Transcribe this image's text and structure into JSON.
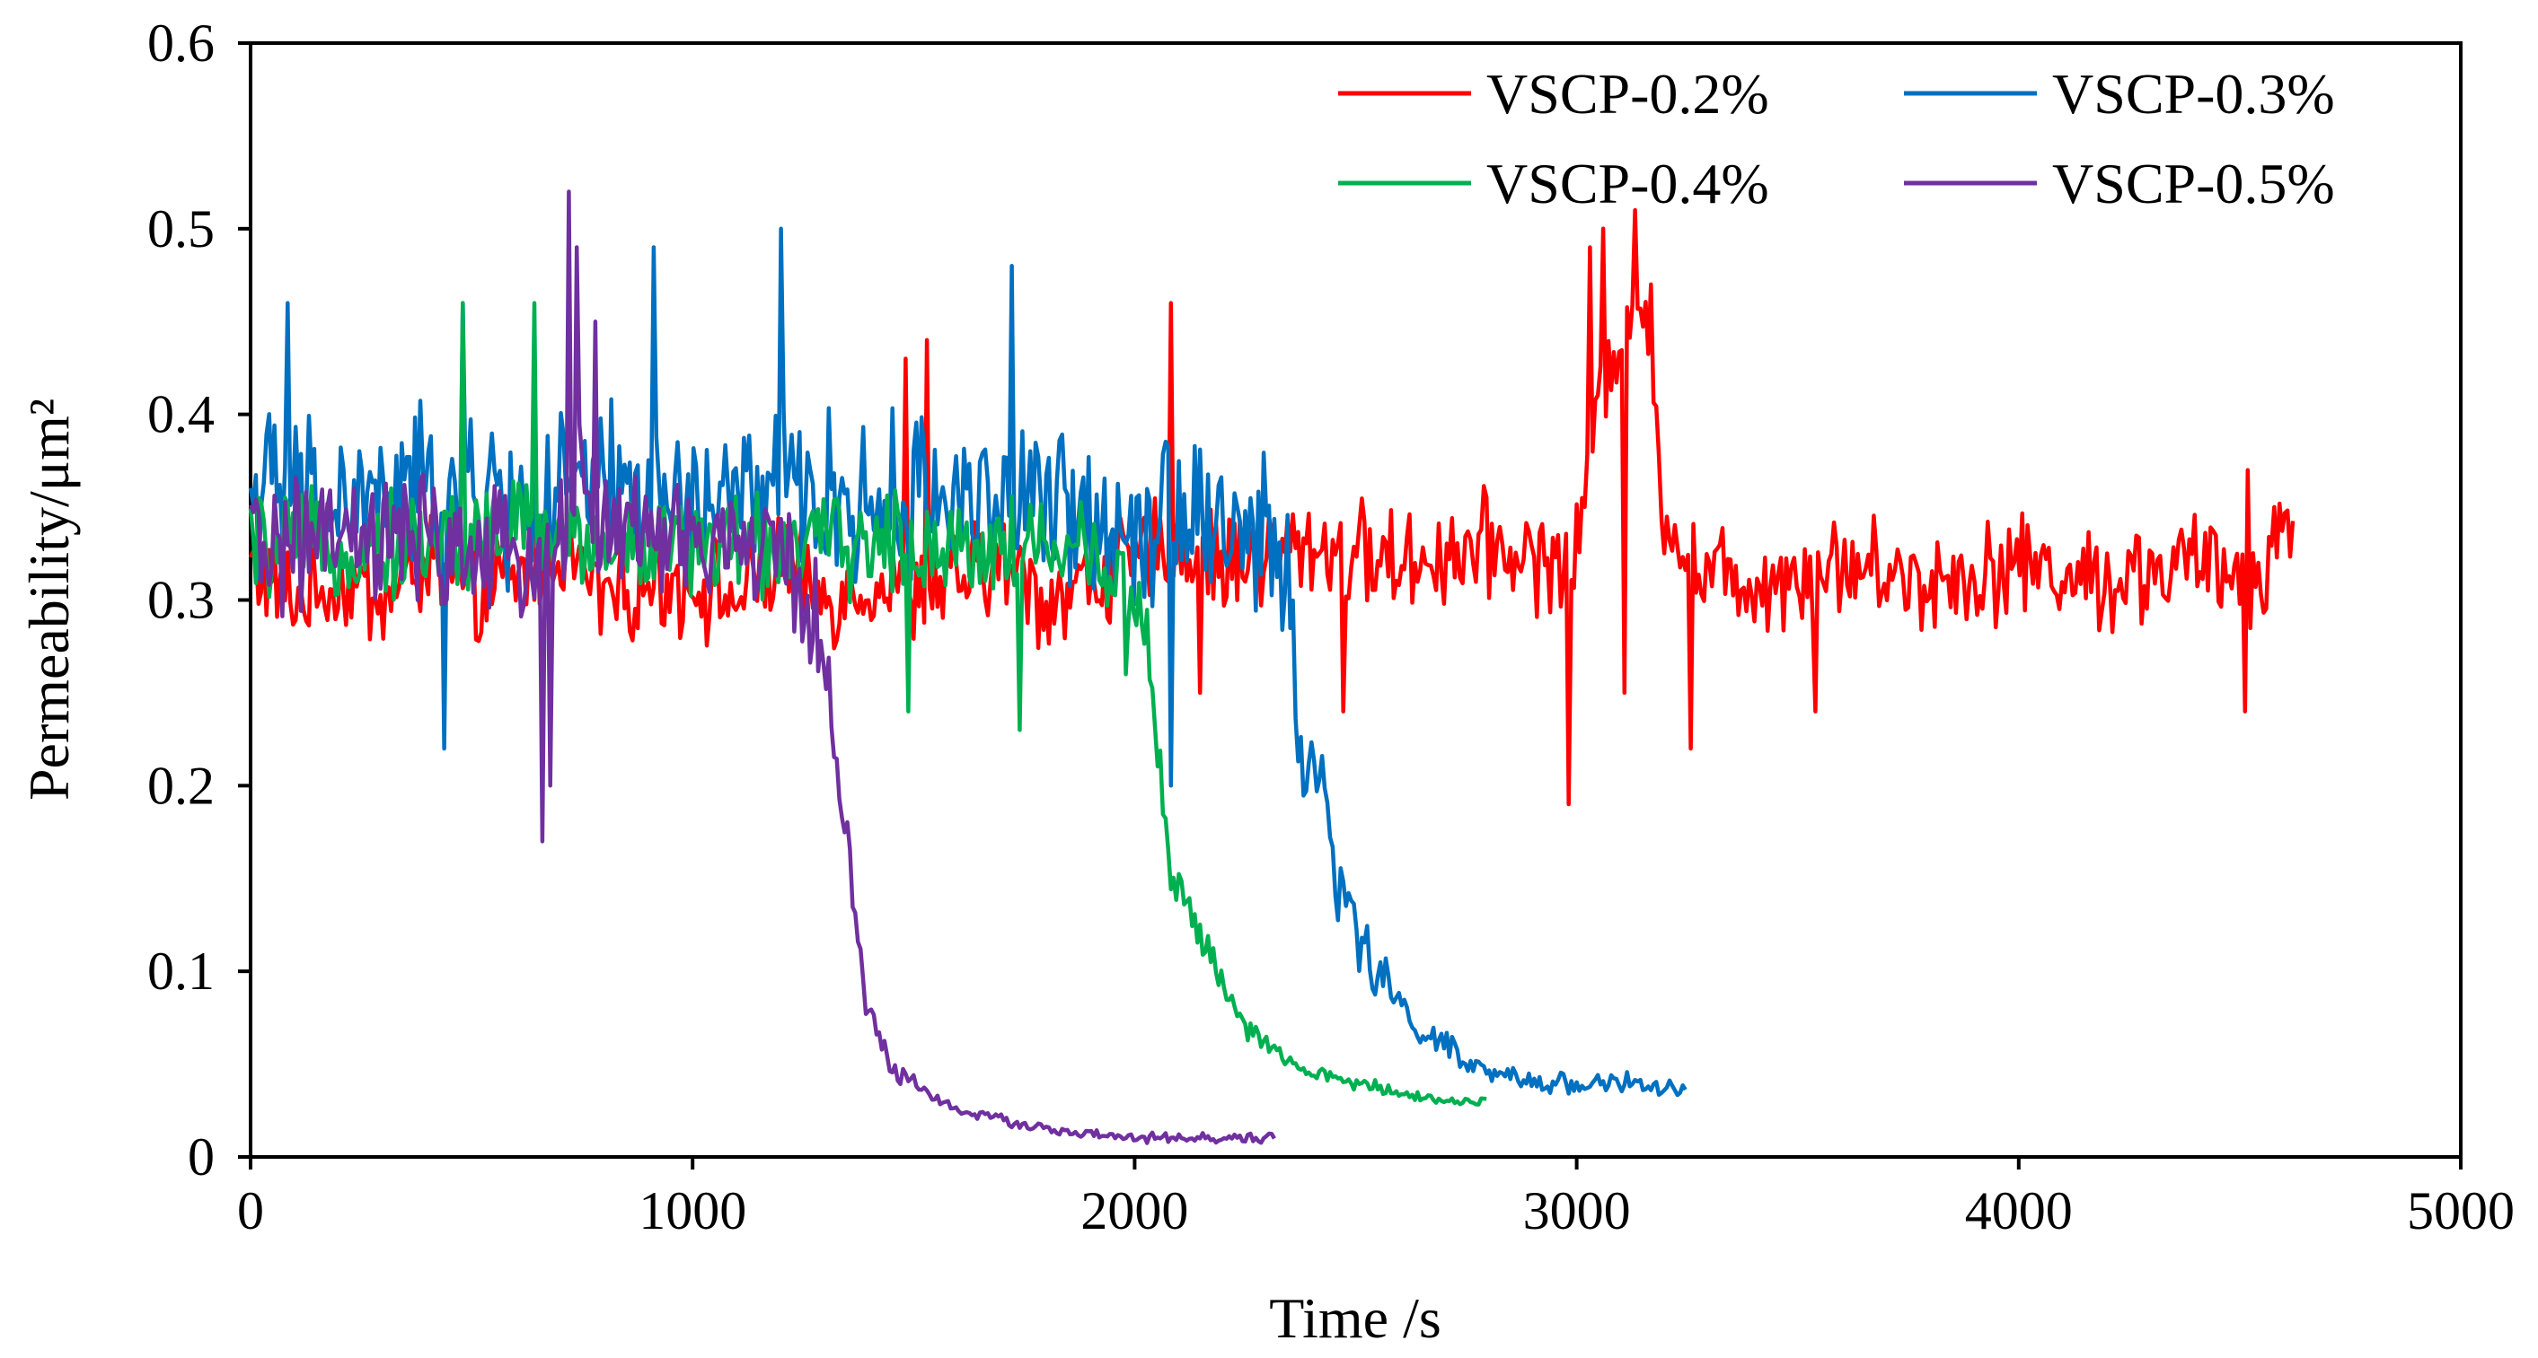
{
  "chart_data": {
    "type": "line",
    "title": "",
    "xlabel": "Time /s",
    "ylabel": "Permeability/μm²",
    "xlim": [
      0,
      5000
    ],
    "ylim": [
      0,
      0.6
    ],
    "xticks": [
      0,
      1000,
      2000,
      3000,
      4000,
      5000
    ],
    "yticks": [
      0,
      0.1,
      0.2,
      0.3,
      0.4,
      0.5,
      0.6
    ],
    "x_tick_labels": [
      "0",
      "1000",
      "2000",
      "3000",
      "4000",
      "5000"
    ],
    "y_tick_labels": [
      "0",
      "0.1",
      "0.2",
      "0.3",
      "0.4",
      "0.5",
      "0.6"
    ],
    "grid": false,
    "legend_position": "top-right",
    "series": [
      {
        "name": "VSCP-0.2%",
        "color": "#ff0000",
        "points": [
          [
            0,
            0.32
          ],
          [
            100,
            0.3
          ],
          [
            200,
            0.31
          ],
          [
            300,
            0.3
          ],
          [
            400,
            0.32
          ],
          [
            500,
            0.3
          ],
          [
            600,
            0.31
          ],
          [
            700,
            0.33
          ],
          [
            800,
            0.3
          ],
          [
            900,
            0.31
          ],
          [
            1000,
            0.31
          ],
          [
            1100,
            0.3
          ],
          [
            1200,
            0.32
          ],
          [
            1300,
            0.3
          ],
          [
            1400,
            0.31
          ],
          [
            1500,
            0.3
          ],
          [
            1600,
            0.31
          ],
          [
            1700,
            0.32
          ],
          [
            1800,
            0.3
          ],
          [
            1900,
            0.31
          ],
          [
            2000,
            0.32
          ],
          [
            2080,
            0.33
          ],
          [
            2200,
            0.32
          ],
          [
            2400,
            0.33
          ],
          [
            2600,
            0.32
          ],
          [
            2800,
            0.33
          ],
          [
            2950,
            0.32
          ],
          [
            3000,
            0.33
          ],
          [
            3070,
            0.43
          ],
          [
            3140,
            0.47
          ],
          [
            3200,
            0.35
          ],
          [
            3260,
            0.32
          ],
          [
            3400,
            0.31
          ],
          [
            3600,
            0.32
          ],
          [
            3800,
            0.31
          ],
          [
            4000,
            0.32
          ],
          [
            4200,
            0.31
          ],
          [
            4400,
            0.32
          ],
          [
            4520,
            0.31
          ],
          [
            4620,
            0.345
          ]
        ],
        "noise": 0.022,
        "spikes": [
          [
            1480,
            0.43
          ],
          [
            1530,
            0.44
          ],
          [
            2080,
            0.46
          ],
          [
            2150,
            0.25
          ],
          [
            2470,
            0.24
          ],
          [
            2980,
            0.19
          ],
          [
            3030,
            0.49
          ],
          [
            3060,
            0.5
          ],
          [
            3110,
            0.25
          ],
          [
            3135,
            0.51
          ],
          [
            3170,
            0.47
          ],
          [
            3260,
            0.22
          ],
          [
            3540,
            0.24
          ],
          [
            4510,
            0.24
          ],
          [
            4520,
            0.37
          ]
        ]
      },
      {
        "name": "VSCP-0.3%",
        "color": "#0070c0",
        "points": [
          [
            0,
            0.36
          ],
          [
            200,
            0.35
          ],
          [
            400,
            0.36
          ],
          [
            600,
            0.35
          ],
          [
            800,
            0.36
          ],
          [
            1000,
            0.35
          ],
          [
            1200,
            0.36
          ],
          [
            1400,
            0.35
          ],
          [
            1600,
            0.36
          ],
          [
            1800,
            0.35
          ],
          [
            2000,
            0.34
          ],
          [
            2100,
            0.36
          ],
          [
            2200,
            0.34
          ],
          [
            2300,
            0.33
          ],
          [
            2350,
            0.31
          ],
          [
            2380,
            0.2
          ],
          [
            2420,
            0.21
          ],
          [
            2450,
            0.16
          ],
          [
            2500,
            0.12
          ],
          [
            2550,
            0.1
          ],
          [
            2600,
            0.08
          ],
          [
            2650,
            0.07
          ],
          [
            2700,
            0.06
          ],
          [
            2750,
            0.05
          ],
          [
            2800,
            0.045
          ],
          [
            2900,
            0.04
          ],
          [
            3000,
            0.04
          ],
          [
            3100,
            0.04
          ],
          [
            3250,
            0.035
          ]
        ],
        "noise": 0.035,
        "spikes": [
          [
            85,
            0.46
          ],
          [
            440,
            0.22
          ],
          [
            480,
            0.46
          ],
          [
            910,
            0.49
          ],
          [
            1200,
            0.5
          ],
          [
            1720,
            0.48
          ],
          [
            2080,
            0.2
          ]
        ]
      },
      {
        "name": "VSCP-0.4%",
        "color": "#00b050",
        "points": [
          [
            0,
            0.33
          ],
          [
            200,
            0.33
          ],
          [
            400,
            0.33
          ],
          [
            600,
            0.34
          ],
          [
            800,
            0.33
          ],
          [
            1000,
            0.33
          ],
          [
            1200,
            0.33
          ],
          [
            1400,
            0.33
          ],
          [
            1600,
            0.33
          ],
          [
            1800,
            0.33
          ],
          [
            1950,
            0.32
          ],
          [
            2000,
            0.3
          ],
          [
            2030,
            0.28
          ],
          [
            2060,
            0.2
          ],
          [
            2080,
            0.15
          ],
          [
            2120,
            0.14
          ],
          [
            2150,
            0.12
          ],
          [
            2200,
            0.09
          ],
          [
            2250,
            0.07
          ],
          [
            2300,
            0.06
          ],
          [
            2350,
            0.05
          ],
          [
            2400,
            0.045
          ],
          [
            2500,
            0.04
          ],
          [
            2600,
            0.035
          ],
          [
            2700,
            0.03
          ],
          [
            2800,
            0.03
          ]
        ],
        "noise": 0.022,
        "spikes": [
          [
            480,
            0.46
          ],
          [
            640,
            0.46
          ],
          [
            1490,
            0.24
          ],
          [
            1740,
            0.23
          ],
          [
            1980,
            0.26
          ]
        ]
      },
      {
        "name": "VSCP-0.5%",
        "color": "#7030a0",
        "points": [
          [
            0,
            0.33
          ],
          [
            200,
            0.33
          ],
          [
            400,
            0.33
          ],
          [
            600,
            0.32
          ],
          [
            700,
            0.34
          ],
          [
            750,
            0.36
          ],
          [
            800,
            0.34
          ],
          [
            1000,
            0.33
          ],
          [
            1150,
            0.33
          ],
          [
            1250,
            0.31
          ],
          [
            1290,
            0.28
          ],
          [
            1320,
            0.22
          ],
          [
            1350,
            0.17
          ],
          [
            1380,
            0.1
          ],
          [
            1400,
            0.08
          ],
          [
            1430,
            0.06
          ],
          [
            1460,
            0.045
          ],
          [
            1500,
            0.04
          ],
          [
            1600,
            0.025
          ],
          [
            1700,
            0.02
          ],
          [
            1800,
            0.015
          ],
          [
            1900,
            0.012
          ],
          [
            2000,
            0.01
          ],
          [
            2200,
            0.01
          ],
          [
            2320,
            0.01
          ]
        ],
        "noise": 0.028,
        "spikes": [
          [
            660,
            0.17
          ],
          [
            720,
            0.52
          ],
          [
            740,
            0.49
          ],
          [
            680,
            0.2
          ],
          [
            780,
            0.45
          ]
        ]
      }
    ]
  }
}
